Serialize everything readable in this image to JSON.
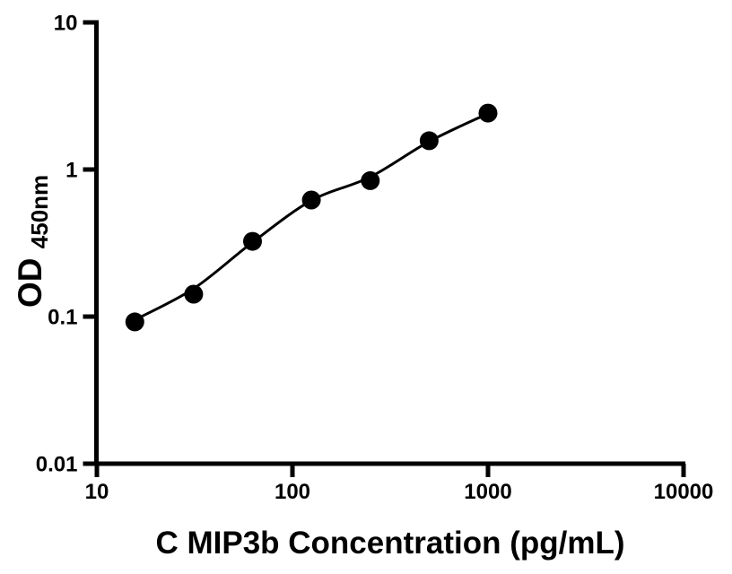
{
  "figure": {
    "background_color": "#ffffff",
    "foreground_color": "#000000",
    "description": "ELISA standard curve, log-log scatter plot with fitted curve"
  },
  "chart_data": {
    "type": "scatter",
    "title": "",
    "xlabel": "C MIP3b Concentration (pg/mL)",
    "ylabel_main": "OD",
    "ylabel_sub": "450nm",
    "x_scale": "log",
    "y_scale": "log",
    "xlim": [
      10,
      10000
    ],
    "ylim": [
      0.01,
      10
    ],
    "grid": false,
    "legend": "none",
    "x_ticks": {
      "values": [
        10,
        100,
        1000,
        10000
      ],
      "labels": [
        "10",
        "100",
        "1000",
        "10000"
      ]
    },
    "y_ticks": {
      "values": [
        10,
        1,
        0.1,
        0.01
      ],
      "labels": [
        "10",
        "1",
        "0.1",
        "0.01"
      ]
    },
    "series": [
      {
        "name": "standard-curve-points",
        "marker": "filled-circle",
        "color": "#000000",
        "x": [
          15.625,
          31.25,
          62.5,
          125,
          250,
          500,
          1000
        ],
        "y": [
          0.092,
          0.142,
          0.325,
          0.62,
          0.84,
          1.57,
          2.42
        ]
      }
    ],
    "fit_curve": {
      "name": "four-parameter-logistic-fit",
      "color": "#000000",
      "x": [
        15.625,
        31.25,
        62.5,
        125,
        250,
        500,
        1000
      ],
      "y": [
        0.095,
        0.155,
        0.32,
        0.615,
        0.89,
        1.55,
        2.4
      ]
    }
  }
}
